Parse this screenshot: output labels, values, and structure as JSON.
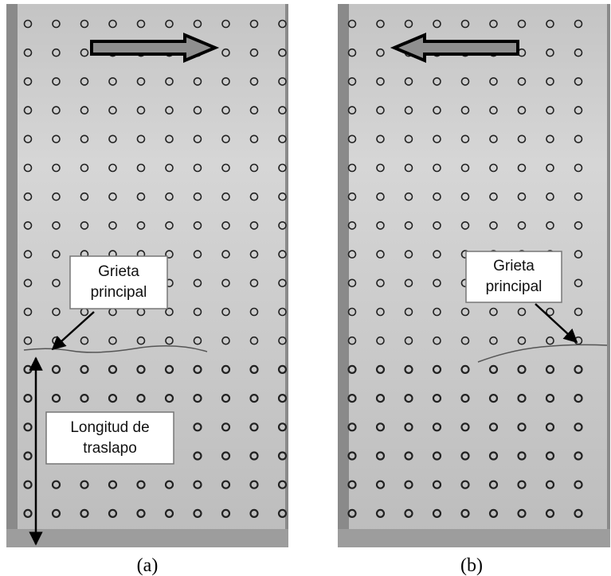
{
  "panels": [
    {
      "caption": "(a)",
      "annotations": [
        {
          "lines": [
            "Grieta",
            "principal"
          ]
        },
        {
          "lines": [
            "Longitud de",
            "traslapo"
          ]
        }
      ]
    },
    {
      "caption": "(b)",
      "annotations": [
        {
          "lines": [
            "Grieta",
            "principal"
          ]
        }
      ]
    }
  ]
}
